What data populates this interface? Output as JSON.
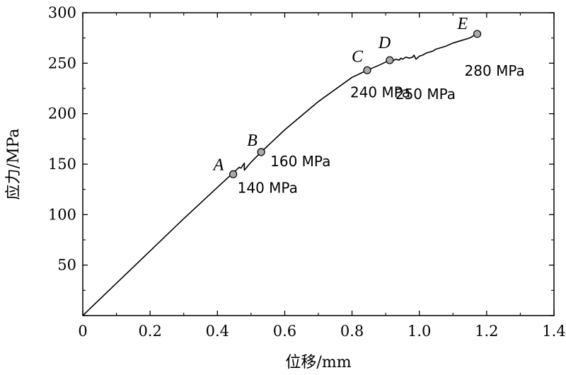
{
  "chart_data": {
    "type": "line",
    "title": "",
    "xlabel": "位移/mm",
    "ylabel": "应力/MPa",
    "xlim": [
      0,
      1.4
    ],
    "ylim": [
      0,
      300
    ],
    "xticks": [
      0,
      0.2,
      0.4,
      0.6,
      0.8,
      1.0,
      1.2,
      1.4
    ],
    "xtick_labels": [
      "0",
      "0.2",
      "0.4",
      "0.6",
      "0.8",
      "1.0",
      "1.2",
      "1.4"
    ],
    "yticks": [
      0,
      50,
      100,
      150,
      200,
      250,
      300
    ],
    "ytick_labels": [
      "",
      "50",
      "100",
      "150",
      "200",
      "250",
      "300"
    ],
    "grid": false,
    "legend": "none",
    "series": [
      {
        "x": [
          0,
          0.1,
          0.2,
          0.3,
          0.4,
          0.465,
          0.47,
          0.48,
          0.48,
          0.5,
          0.53,
          0.6,
          0.7,
          0.8,
          0.845,
          0.88,
          0.912,
          0.92,
          0.93,
          0.94,
          0.945,
          0.95,
          0.96,
          0.97,
          0.98,
          0.984,
          0.99,
          1.0,
          1.01,
          1.02,
          1.03,
          1.04,
          1.05,
          1.08,
          1.1,
          1.12,
          1.15,
          1.17
        ],
        "y": [
          0,
          32,
          64,
          96,
          127,
          147,
          146,
          151,
          144,
          152,
          162,
          184,
          212,
          236,
          243,
          248,
          253,
          252,
          254,
          253,
          255,
          254,
          256,
          255,
          256,
          258,
          254,
          257,
          258,
          260,
          261,
          262,
          264,
          267,
          270,
          272,
          275,
          279
        ],
        "color": "#000000"
      }
    ],
    "annotations": [
      {
        "label": "A",
        "value": "140 MPa",
        "x": 0.447,
        "y": 140
      },
      {
        "label": "B",
        "value": "160 MPa",
        "x": 0.53,
        "y": 162
      },
      {
        "label": "C",
        "value": "240 MPa",
        "x": 0.845,
        "y": 243
      },
      {
        "label": "D",
        "value": "250 MPa",
        "x": 0.912,
        "y": 253
      },
      {
        "label": "E",
        "value": "280 MPa",
        "x": 1.172,
        "y": 279
      }
    ],
    "marker_color": "#aaaaaa"
  }
}
